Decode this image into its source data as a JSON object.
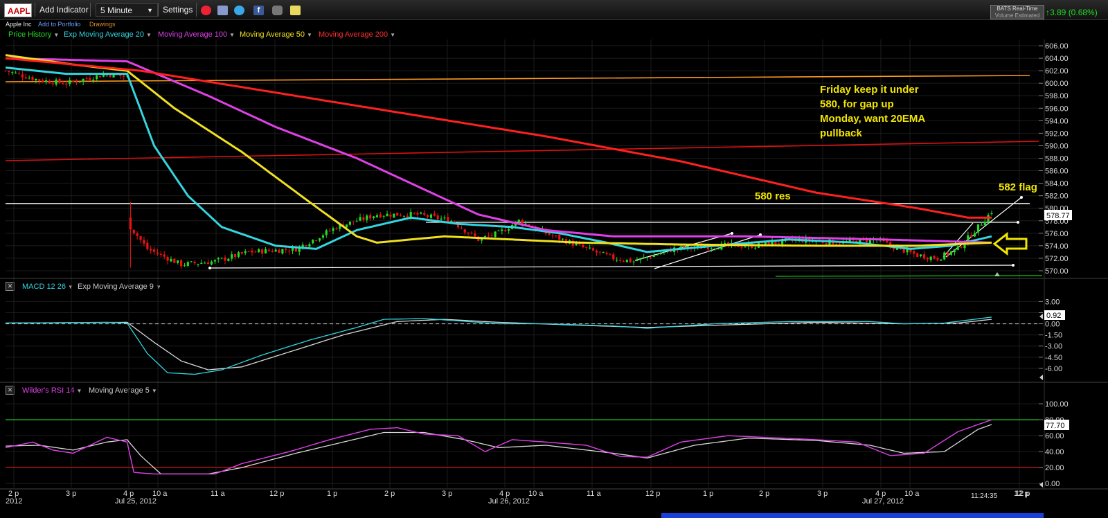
{
  "toolbar": {
    "symbol": "AAPL",
    "add_indicator": "Add Indicator",
    "interval": "5 Minute",
    "settings": "Settings",
    "feed_line1": "BATS Real-Time",
    "feed_line2": "Volume Estimated",
    "change": "3.89 (0.68%)",
    "icons": [
      "alarm-clock-icon",
      "layers-icon",
      "twitter-icon",
      "facebook-icon",
      "camera-icon",
      "note-icon"
    ]
  },
  "subbar": {
    "company": "Apple Inc",
    "add_to_portfolio": "Add to Portfolio",
    "drawings": "Drawings"
  },
  "legends": {
    "price": [
      {
        "label": "Price History",
        "color": "#22dd22"
      },
      {
        "label": "Exp Moving Average 20",
        "color": "#33d6e0"
      },
      {
        "label": "Moving Average 100",
        "color": "#e040e8"
      },
      {
        "label": "Moving Average 50",
        "color": "#f0e020"
      },
      {
        "label": "Moving Average 200",
        "color": "#ff3030"
      }
    ],
    "macd": [
      {
        "label": "MACD 12 26",
        "color": "#33d6e0"
      },
      {
        "label": "Exp Moving Average 9",
        "color": "#cccccc"
      }
    ],
    "rsi": [
      {
        "label": "Wilder's RSI 14",
        "color": "#e040e8"
      },
      {
        "label": "Moving Average 5",
        "color": "#cccccc"
      }
    ]
  },
  "annotations": {
    "note_lines": [
      "Friday keep it under",
      "580, for gap up",
      "Monday, want 20EMA",
      "pullback"
    ],
    "resistance": "580 res",
    "flag": "582 flag"
  },
  "time_label": "11:24:35",
  "chart_data": [
    {
      "type": "candlestick",
      "title": "AAPL 5 Minute",
      "ylim": [
        569,
        607
      ],
      "yticks": [
        "606.00",
        "604.00",
        "602.00",
        "600.00",
        "598.00",
        "596.00",
        "594.00",
        "592.00",
        "590.00",
        "588.00",
        "586.00",
        "584.00",
        "582.00",
        "580.00",
        "578.00",
        "576.00",
        "574.00",
        "572.00",
        "570.00"
      ],
      "last_price": "578.77",
      "x_labels": [
        "2 p",
        "3 p",
        "4 p",
        "10 a",
        "11 a",
        "12 p",
        "1 p",
        "2 p",
        "3 p",
        "4 p",
        "10 a",
        "11 a",
        "12 p",
        "1 p",
        "2 p",
        "3 p",
        "4 p",
        "10 a",
        "12 p"
      ],
      "date_labels": [
        "2012",
        "Jul 25, 2012",
        "Jul 26, 2012",
        "Jul 27, 2012"
      ],
      "close_anchors": [
        [
          0,
          602
        ],
        [
          10,
          600.5
        ],
        [
          18,
          600
        ],
        [
          30,
          601.5
        ],
        [
          36,
          601
        ],
        [
          37,
          577
        ],
        [
          42,
          573.5
        ],
        [
          52,
          571
        ],
        [
          62,
          571.5
        ],
        [
          72,
          573
        ],
        [
          86,
          573.5
        ],
        [
          98,
          577
        ],
        [
          110,
          579
        ],
        [
          122,
          579
        ],
        [
          132,
          578
        ],
        [
          140,
          575
        ],
        [
          146,
          576
        ],
        [
          152,
          578
        ],
        [
          160,
          576
        ],
        [
          172,
          573.5
        ],
        [
          180,
          572
        ],
        [
          186,
          571.5
        ],
        [
          198,
          573.5
        ],
        [
          212,
          574
        ],
        [
          222,
          574
        ],
        [
          234,
          575
        ],
        [
          246,
          574.5
        ],
        [
          258,
          575
        ],
        [
          262,
          574
        ],
        [
          270,
          572.5
        ],
        [
          276,
          572
        ],
        [
          282,
          573.5
        ],
        [
          288,
          577
        ],
        [
          292,
          579.5
        ]
      ],
      "series": [
        {
          "name": "Exp Moving Average 20",
          "anchors": [
            [
              0,
              602.5
            ],
            [
              18,
              601.5
            ],
            [
              36,
              601.5
            ],
            [
              44,
              590
            ],
            [
              54,
              582
            ],
            [
              64,
              577
            ],
            [
              80,
              574
            ],
            [
              92,
              573.5
            ],
            [
              104,
              576.5
            ],
            [
              120,
              578.5
            ],
            [
              134,
              577.5
            ],
            [
              150,
              577
            ],
            [
              164,
              576
            ],
            [
              178,
              574.5
            ],
            [
              190,
              573
            ],
            [
              210,
              574
            ],
            [
              232,
              575
            ],
            [
              252,
              574.5
            ],
            [
              268,
              573.5
            ],
            [
              280,
              574
            ],
            [
              292,
              575.5
            ]
          ]
        },
        {
          "name": "Moving Average 100",
          "anchors": [
            [
              0,
              604
            ],
            [
              36,
              603.5
            ],
            [
              60,
              598
            ],
            [
              80,
              593
            ],
            [
              104,
              588
            ],
            [
              124,
              583
            ],
            [
              140,
              579
            ],
            [
              160,
              576.5
            ],
            [
              180,
              575.5
            ],
            [
              220,
              575.5
            ],
            [
              260,
              575
            ],
            [
              292,
              574.5
            ]
          ]
        },
        {
          "name": "Moving Average 50",
          "anchors": [
            [
              0,
              604.5
            ],
            [
              20,
              603
            ],
            [
              36,
              602
            ],
            [
              50,
              596
            ],
            [
              70,
              589
            ],
            [
              90,
              581
            ],
            [
              104,
              575.5
            ],
            [
              110,
              574.5
            ],
            [
              130,
              575.5
            ],
            [
              150,
              575
            ],
            [
              170,
              574.5
            ],
            [
              200,
              574.2
            ],
            [
              240,
              574
            ],
            [
              270,
              574
            ],
            [
              292,
              574.5
            ]
          ]
        },
        {
          "name": "Moving Average 200",
          "anchors": [
            [
              0,
              604
            ],
            [
              40,
              602
            ],
            [
              80,
              598.5
            ],
            [
              120,
              595
            ],
            [
              160,
              591.5
            ],
            [
              200,
              587.5
            ],
            [
              240,
              582.5
            ],
            [
              270,
              580
            ],
            [
              285,
              578.5
            ],
            [
              292,
              578.5
            ]
          ]
        }
      ]
    },
    {
      "type": "line",
      "title": "MACD 12 26",
      "ylim": [
        -7.5,
        3.5
      ],
      "yticks": [
        "3.00",
        "1.50",
        "0.00",
        "-1.50",
        "-3.00",
        "-4.50",
        "-6.00"
      ],
      "last_value": "0.92",
      "series": [
        {
          "name": "MACD 12 26",
          "anchors": [
            [
              0,
              0.1
            ],
            [
              30,
              0.2
            ],
            [
              36,
              0.1
            ],
            [
              42,
              -4
            ],
            [
              48,
              -6.6
            ],
            [
              56,
              -6.8
            ],
            [
              64,
              -6.2
            ],
            [
              76,
              -4.2
            ],
            [
              90,
              -2.2
            ],
            [
              104,
              -0.5
            ],
            [
              112,
              0.6
            ],
            [
              124,
              0.7
            ],
            [
              134,
              0.4
            ],
            [
              146,
              0
            ],
            [
              160,
              0
            ],
            [
              180,
              -0.3
            ],
            [
              190,
              -0.6
            ],
            [
              210,
              0
            ],
            [
              232,
              0.3
            ],
            [
              256,
              0.3
            ],
            [
              266,
              0
            ],
            [
              278,
              0.1
            ],
            [
              292,
              0.9
            ]
          ]
        },
        {
          "name": "Exp Moving Average 9",
          "anchors": [
            [
              0,
              0.1
            ],
            [
              36,
              0.2
            ],
            [
              44,
              -2.5
            ],
            [
              52,
              -5
            ],
            [
              60,
              -6.2
            ],
            [
              70,
              -5.8
            ],
            [
              84,
              -3.8
            ],
            [
              100,
              -1.5
            ],
            [
              116,
              0.3
            ],
            [
              130,
              0.6
            ],
            [
              146,
              0.2
            ],
            [
              170,
              -0.2
            ],
            [
              190,
              -0.5
            ],
            [
              210,
              -0.2
            ],
            [
              240,
              0.2
            ],
            [
              266,
              0
            ],
            [
              282,
              0.1
            ],
            [
              292,
              0.6
            ]
          ]
        }
      ]
    },
    {
      "type": "line",
      "title": "Wilder's RSI 14",
      "ylim": [
        -5,
        107
      ],
      "yticks": [
        "100.00",
        "80.00",
        "60.00",
        "40.00",
        "20.00",
        "0.00"
      ],
      "levels": [
        80,
        20
      ],
      "last_value": "77.70",
      "series": [
        {
          "name": "Wilder's RSI 14",
          "anchors": [
            [
              0,
              45
            ],
            [
              8,
              52
            ],
            [
              14,
              42
            ],
            [
              20,
              38
            ],
            [
              30,
              58
            ],
            [
              36,
              52
            ],
            [
              38,
              14
            ],
            [
              44,
              12
            ],
            [
              56,
              12
            ],
            [
              62,
              12
            ],
            [
              70,
              25
            ],
            [
              84,
              40
            ],
            [
              96,
              55
            ],
            [
              108,
              68
            ],
            [
              116,
              70
            ],
            [
              124,
              62
            ],
            [
              134,
              60
            ],
            [
              142,
              40
            ],
            [
              150,
              55
            ],
            [
              160,
              52
            ],
            [
              172,
              48
            ],
            [
              182,
              34
            ],
            [
              190,
              33
            ],
            [
              200,
              52
            ],
            [
              214,
              60
            ],
            [
              224,
              58
            ],
            [
              240,
              55
            ],
            [
              252,
              52
            ],
            [
              262,
              35
            ],
            [
              272,
              38
            ],
            [
              282,
              65
            ],
            [
              292,
              80
            ]
          ]
        },
        {
          "name": "Moving Average 5",
          "anchors": [
            [
              0,
              47
            ],
            [
              10,
              48
            ],
            [
              20,
              42
            ],
            [
              30,
              52
            ],
            [
              36,
              55
            ],
            [
              40,
              35
            ],
            [
              46,
              12
            ],
            [
              60,
              12
            ],
            [
              70,
              20
            ],
            [
              86,
              38
            ],
            [
              100,
              52
            ],
            [
              112,
              64
            ],
            [
              124,
              64
            ],
            [
              136,
              55
            ],
            [
              146,
              45
            ],
            [
              160,
              48
            ],
            [
              180,
              38
            ],
            [
              190,
              32
            ],
            [
              204,
              48
            ],
            [
              220,
              57
            ],
            [
              240,
              54
            ],
            [
              256,
              48
            ],
            [
              266,
              38
            ],
            [
              278,
              40
            ],
            [
              288,
              68
            ],
            [
              292,
              74
            ]
          ]
        }
      ]
    }
  ]
}
